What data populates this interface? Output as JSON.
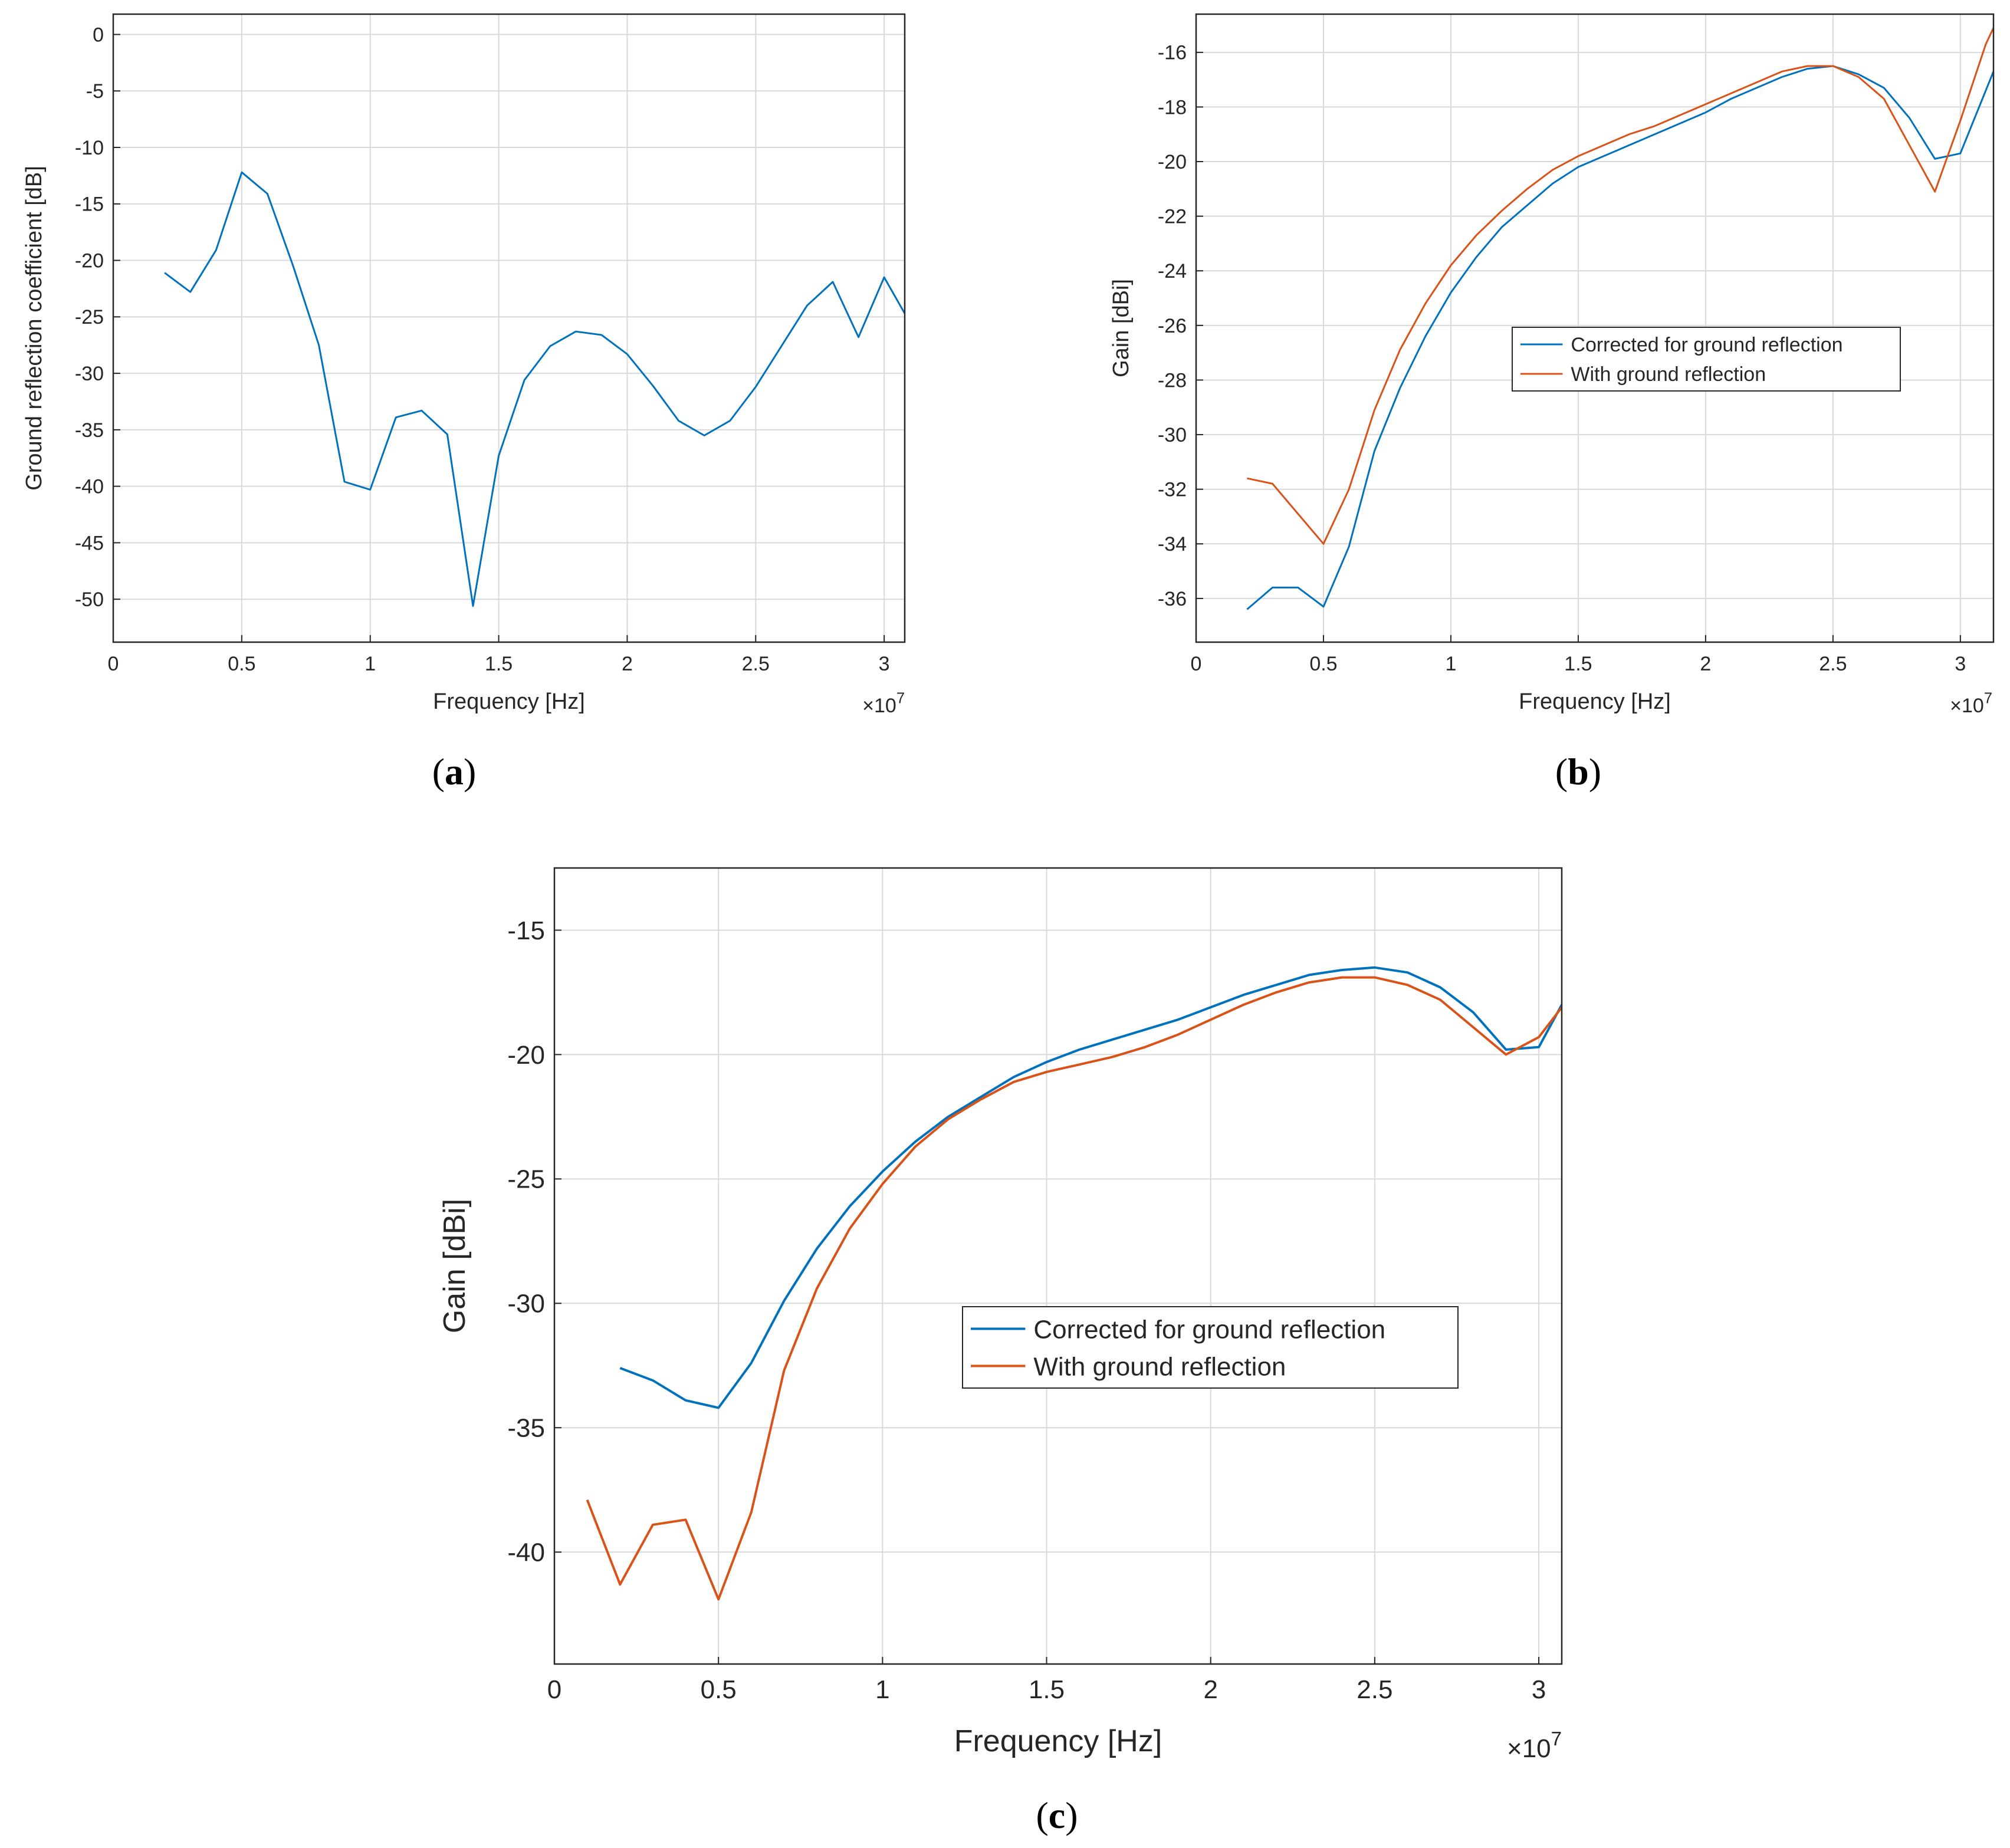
{
  "colors": {
    "blue": "#0072BD",
    "orange": "#D95319",
    "grid": "#d9d9d9",
    "axis": "#262626"
  },
  "chart_data": [
    {
      "id": "a",
      "panel_label": "(a)",
      "type": "line",
      "xlabel": "Frequency [Hz]",
      "ylabel": "Ground reflection coefficient [dB]",
      "x_exponent": "×10",
      "x_exponent_power": "7",
      "xlim": [
        0,
        3.08
      ],
      "ylim": [
        -53.8,
        1.8
      ],
      "xticks": [
        0,
        0.5,
        1,
        1.5,
        2,
        2.5,
        3
      ],
      "xtick_labels": [
        "0",
        "0.5",
        "1",
        "1.5",
        "2",
        "2.5",
        "3"
      ],
      "yticks": [
        0,
        -5,
        -10,
        -15,
        -20,
        -25,
        -30,
        -35,
        -40,
        -45,
        -50
      ],
      "ytick_labels": [
        "0",
        "-5",
        "-10",
        "-15",
        "-20",
        "-25",
        "-30",
        "-35",
        "-40",
        "-45",
        "-50"
      ],
      "grid": true,
      "series": [
        {
          "color": "#0072BD",
          "x": [
            0.2,
            0.3,
            0.4,
            0.5,
            0.6,
            0.7,
            0.8,
            0.9,
            1.0,
            1.1,
            1.2,
            1.3,
            1.4,
            1.5,
            1.6,
            1.7,
            1.8,
            1.9,
            2.0,
            2.1,
            2.2,
            2.3,
            2.4,
            2.5,
            2.6,
            2.7,
            2.8,
            2.9,
            3.0,
            3.08
          ],
          "y": [
            -21.1,
            -22.8,
            -19.1,
            -12.2,
            -14.1,
            -20.5,
            -27.5,
            -39.6,
            -40.3,
            -33.9,
            -33.3,
            -35.4,
            -50.6,
            -37.3,
            -30.6,
            -27.6,
            -26.3,
            -26.6,
            -28.3,
            -31.1,
            -34.2,
            -35.5,
            -34.2,
            -31.2,
            -27.6,
            -24.0,
            -21.9,
            -26.8,
            -21.5,
            -24.7
          ]
        }
      ]
    },
    {
      "id": "b",
      "panel_label": "(b)",
      "type": "line",
      "xlabel": "Frequency [Hz]",
      "ylabel": "Gain [dBi]",
      "x_exponent": "×10",
      "x_exponent_power": "7",
      "xlim": [
        0,
        3.13
      ],
      "ylim": [
        -37.6,
        -14.6
      ],
      "xticks": [
        0,
        0.5,
        1,
        1.5,
        2,
        2.5,
        3
      ],
      "xtick_labels": [
        "0",
        "0.5",
        "1",
        "1.5",
        "2",
        "2.5",
        "3"
      ],
      "yticks": [
        -16,
        -18,
        -20,
        -22,
        -24,
        -26,
        -28,
        -30,
        -32,
        -34,
        -36
      ],
      "ytick_labels": [
        "-16",
        "-18",
        "-20",
        "-22",
        "-24",
        "-26",
        "-28",
        "-30",
        "-32",
        "-34",
        "-36"
      ],
      "grid": true,
      "legend": "center",
      "series": [
        {
          "name": "Corrected for ground reflection",
          "color": "#0072BD",
          "x": [
            0.2,
            0.3,
            0.4,
            0.5,
            0.6,
            0.7,
            0.8,
            0.9,
            1.0,
            1.1,
            1.2,
            1.3,
            1.4,
            1.5,
            1.6,
            1.7,
            1.8,
            1.9,
            2.0,
            2.1,
            2.2,
            2.3,
            2.4,
            2.5,
            2.6,
            2.7,
            2.8,
            2.9,
            3.0,
            3.13
          ],
          "y": [
            -36.4,
            -35.6,
            -35.6,
            -36.3,
            -34.1,
            -30.6,
            -28.3,
            -26.4,
            -24.8,
            -23.5,
            -22.4,
            -21.6,
            -20.8,
            -20.2,
            -19.8,
            -19.4,
            -19.0,
            -18.6,
            -18.2,
            -17.7,
            -17.3,
            -16.9,
            -16.6,
            -16.5,
            -16.8,
            -17.3,
            -18.4,
            -19.9,
            -19.7,
            -16.7
          ]
        },
        {
          "name": "With ground reflection",
          "color": "#D95319",
          "x": [
            0.2,
            0.3,
            0.4,
            0.5,
            0.6,
            0.7,
            0.8,
            0.9,
            1.0,
            1.1,
            1.2,
            1.3,
            1.4,
            1.5,
            1.6,
            1.7,
            1.8,
            1.9,
            2.0,
            2.1,
            2.2,
            2.3,
            2.4,
            2.5,
            2.6,
            2.7,
            2.8,
            2.9,
            3.0,
            3.1,
            3.13
          ],
          "y": [
            -31.6,
            -31.8,
            -32.9,
            -34.0,
            -32.0,
            -29.1,
            -26.9,
            -25.2,
            -23.8,
            -22.7,
            -21.8,
            -21.0,
            -20.3,
            -19.8,
            -19.4,
            -19.0,
            -18.7,
            -18.3,
            -17.9,
            -17.5,
            -17.1,
            -16.7,
            -16.5,
            -16.5,
            -16.9,
            -17.7,
            -19.4,
            -21.1,
            -18.5,
            -15.7,
            -15.1
          ]
        }
      ]
    },
    {
      "id": "c",
      "panel_label": "(c)",
      "type": "line",
      "xlabel": "Frequency [Hz]",
      "ylabel": "Gain [dBi]",
      "x_exponent": "×10",
      "x_exponent_power": "7",
      "xlim": [
        0,
        3.07
      ],
      "ylim": [
        -44.5,
        -12.5
      ],
      "xticks": [
        0,
        0.5,
        1,
        1.5,
        2,
        2.5,
        3
      ],
      "xtick_labels": [
        "0",
        "0.5",
        "1",
        "1.5",
        "2",
        "2.5",
        "3"
      ],
      "yticks": [
        -15,
        -20,
        -25,
        -30,
        -35,
        -40
      ],
      "ytick_labels": [
        "-15",
        "-20",
        "-25",
        "-30",
        "-35",
        "-40"
      ],
      "grid": true,
      "legend": "center-right",
      "series": [
        {
          "name": "Corrected for ground reflection",
          "color": "#0072BD",
          "x": [
            0.2,
            0.3,
            0.4,
            0.5,
            0.6,
            0.7,
            0.8,
            0.9,
            1.0,
            1.1,
            1.2,
            1.3,
            1.4,
            1.5,
            1.6,
            1.7,
            1.8,
            1.9,
            2.0,
            2.1,
            2.2,
            2.3,
            2.4,
            2.5,
            2.6,
            2.7,
            2.8,
            2.9,
            3.0,
            3.07
          ],
          "y": [
            -32.6,
            -33.1,
            -33.9,
            -34.2,
            -32.4,
            -29.9,
            -27.8,
            -26.1,
            -24.7,
            -23.5,
            -22.5,
            -21.7,
            -20.9,
            -20.3,
            -19.8,
            -19.4,
            -19.0,
            -18.6,
            -18.1,
            -17.6,
            -17.2,
            -16.8,
            -16.6,
            -16.5,
            -16.7,
            -17.3,
            -18.3,
            -19.8,
            -19.7,
            -18.0
          ]
        },
        {
          "name": "With ground reflection",
          "color": "#D95319",
          "x": [
            0.1,
            0.2,
            0.3,
            0.4,
            0.5,
            0.6,
            0.7,
            0.8,
            0.9,
            1.0,
            1.1,
            1.2,
            1.3,
            1.4,
            1.5,
            1.6,
            1.7,
            1.8,
            1.9,
            2.0,
            2.1,
            2.2,
            2.3,
            2.4,
            2.5,
            2.6,
            2.7,
            2.8,
            2.9,
            3.0,
            3.07
          ],
          "y": [
            -37.9,
            -41.3,
            -38.9,
            -38.7,
            -41.9,
            -38.4,
            -32.7,
            -29.4,
            -27.0,
            -25.2,
            -23.7,
            -22.6,
            -21.8,
            -21.1,
            -20.7,
            -20.4,
            -20.1,
            -19.7,
            -19.2,
            -18.6,
            -18.0,
            -17.5,
            -17.1,
            -16.9,
            -16.9,
            -17.2,
            -17.8,
            -18.9,
            -20.0,
            -19.3,
            -18.1
          ]
        }
      ]
    }
  ]
}
